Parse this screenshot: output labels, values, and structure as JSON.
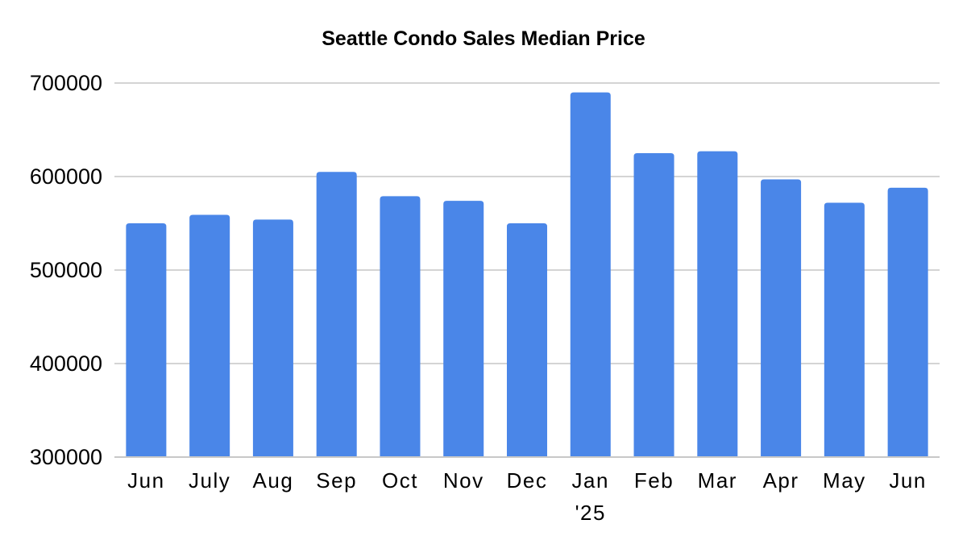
{
  "chart_data": {
    "type": "bar",
    "title": "Seattle Condo Sales Median Price",
    "xlabel": "",
    "ylabel": "",
    "categories": [
      "Jun",
      "July",
      "Aug",
      "Sep",
      "Oct",
      "Nov",
      "Dec",
      "Jan '25",
      "Feb",
      "Mar",
      "Apr",
      "May",
      "Jun"
    ],
    "category_lines": [
      [
        "Jun"
      ],
      [
        "July"
      ],
      [
        "Aug"
      ],
      [
        "Sep"
      ],
      [
        "Oct"
      ],
      [
        "Nov"
      ],
      [
        "Dec"
      ],
      [
        "Jan",
        "'25"
      ],
      [
        "Feb"
      ],
      [
        "Mar"
      ],
      [
        "Apr"
      ],
      [
        "May"
      ],
      [
        "Jun"
      ]
    ],
    "values": [
      550000,
      559000,
      554000,
      605000,
      579000,
      574000,
      550000,
      690000,
      625000,
      627000,
      597000,
      572000,
      588000
    ],
    "ylim": [
      300000,
      700000
    ],
    "yticks": [
      300000,
      400000,
      500000,
      600000,
      700000
    ],
    "ytick_labels": [
      "300000",
      "400000",
      "500000",
      "600000",
      "700000"
    ],
    "grid": true,
    "legend": "none",
    "bar_color": "#4a86e8",
    "grid_color": "#d4d4d4",
    "text_color": "#000000"
  }
}
